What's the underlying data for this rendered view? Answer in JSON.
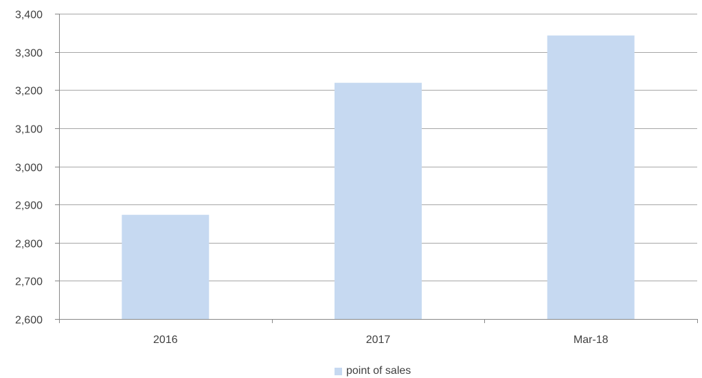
{
  "chart_data": {
    "type": "bar",
    "categories": [
      "2016",
      "2017",
      "Mar-18"
    ],
    "series": [
      {
        "name": "point of sales",
        "values": [
          2873,
          3219,
          3343
        ]
      }
    ],
    "ylim": [
      2600,
      3400
    ],
    "yticks": [
      2600,
      2700,
      2800,
      2900,
      3000,
      3100,
      3200,
      3300,
      3400
    ],
    "ytick_labels": [
      "2,600",
      "2,700",
      "2,800",
      "2,900",
      "3,000",
      "3,100",
      "3,200",
      "3,300",
      "3,400"
    ],
    "grid": true,
    "legend_position": "bottom",
    "colors": {
      "bar": "#c6d9f1",
      "grid": "#a6a6a6",
      "axis": "#868686",
      "text": "#404040"
    }
  }
}
